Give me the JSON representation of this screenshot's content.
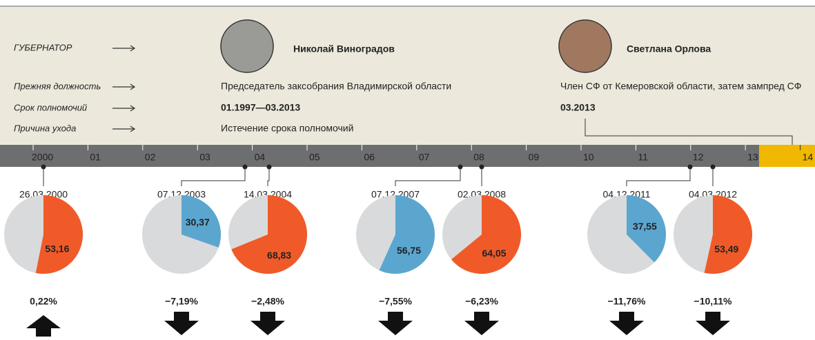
{
  "rows": {
    "governor": "ГУБЕРНАТОР",
    "previous_post": "Прежняя должность",
    "term": "Срок полномочий",
    "reason": "Причина ухода"
  },
  "governors": [
    {
      "name": "Николай Виноградов",
      "previous_post": "Председатель заксобрания Владимирской области",
      "term": "01.1997—03.2013",
      "reason": "Истечение срока полномочий"
    },
    {
      "name": "Светлана Орлова",
      "previous_post": "Член СФ от Кемеровской области, затем зампред СФ",
      "term": "03.2013"
    }
  ],
  "timeline": [
    "2000",
    "01",
    "02",
    "03",
    "04",
    "05",
    "06",
    "07",
    "08",
    "09",
    "10",
    "11",
    "12",
    "13",
    "14"
  ],
  "elections": [
    {
      "date": "26.03.2000",
      "value": 53.16,
      "value_label": "53,16",
      "color": "#f05a28",
      "change": 0.22,
      "change_label": "0,22%"
    },
    {
      "date": "07.12.2003",
      "value": 30.37,
      "value_label": "30,37",
      "color": "#5ba6cf",
      "change": -7.19,
      "change_label": "−7,19%"
    },
    {
      "date": "14.03.2004",
      "value": 68.83,
      "value_label": "68,83",
      "color": "#f05a28",
      "change": -2.48,
      "change_label": "−2,48%"
    },
    {
      "date": "07.12.2007",
      "value": 56.75,
      "value_label": "56,75",
      "color": "#5ba6cf",
      "change": -7.55,
      "change_label": "−7,55%"
    },
    {
      "date": "02.03.2008",
      "value": 64.05,
      "value_label": "64,05",
      "color": "#f05a28",
      "change": -6.23,
      "change_label": "−6,23%"
    },
    {
      "date": "04.12.2011",
      "value": 37.55,
      "value_label": "37,55",
      "color": "#5ba6cf",
      "change": -11.76,
      "change_label": "−11,76%"
    },
    {
      "date": "04.03.2012",
      "value": 53.49,
      "value_label": "53,49",
      "color": "#f05a28",
      "change": -10.11,
      "change_label": "−10,11%"
    }
  ]
}
